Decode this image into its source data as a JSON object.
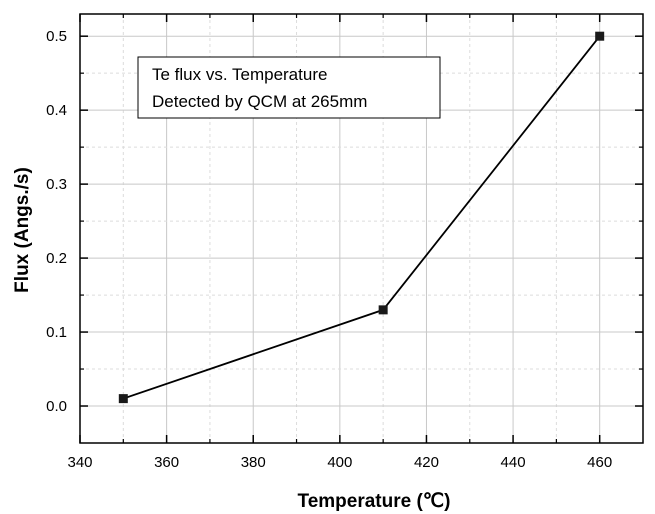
{
  "chart_data": {
    "type": "line",
    "xlabel": "Temperature (℃)",
    "ylabel": "Flux (Angs./s)",
    "xlim": [
      340,
      470
    ],
    "ylim": [
      -0.05,
      0.53
    ],
    "xticks": [
      340,
      360,
      380,
      400,
      420,
      440,
      460
    ],
    "yticks": [
      0.0,
      0.1,
      0.2,
      0.3,
      0.4,
      0.5
    ],
    "xtick_labels": [
      "340",
      "360",
      "380",
      "400",
      "420",
      "440",
      "460"
    ],
    "ytick_labels": [
      "0.0",
      "0.1",
      "0.2",
      "0.3",
      "0.4",
      "0.5"
    ],
    "grid": true,
    "series": [
      {
        "x": [
          350,
          410,
          460
        ],
        "y": [
          0.01,
          0.13,
          0.5
        ],
        "marker": "square",
        "color": "#000000"
      }
    ],
    "annotation": {
      "lines": [
        "Te flux vs. Temperature",
        "Detected by QCM at 265mm"
      ]
    }
  }
}
